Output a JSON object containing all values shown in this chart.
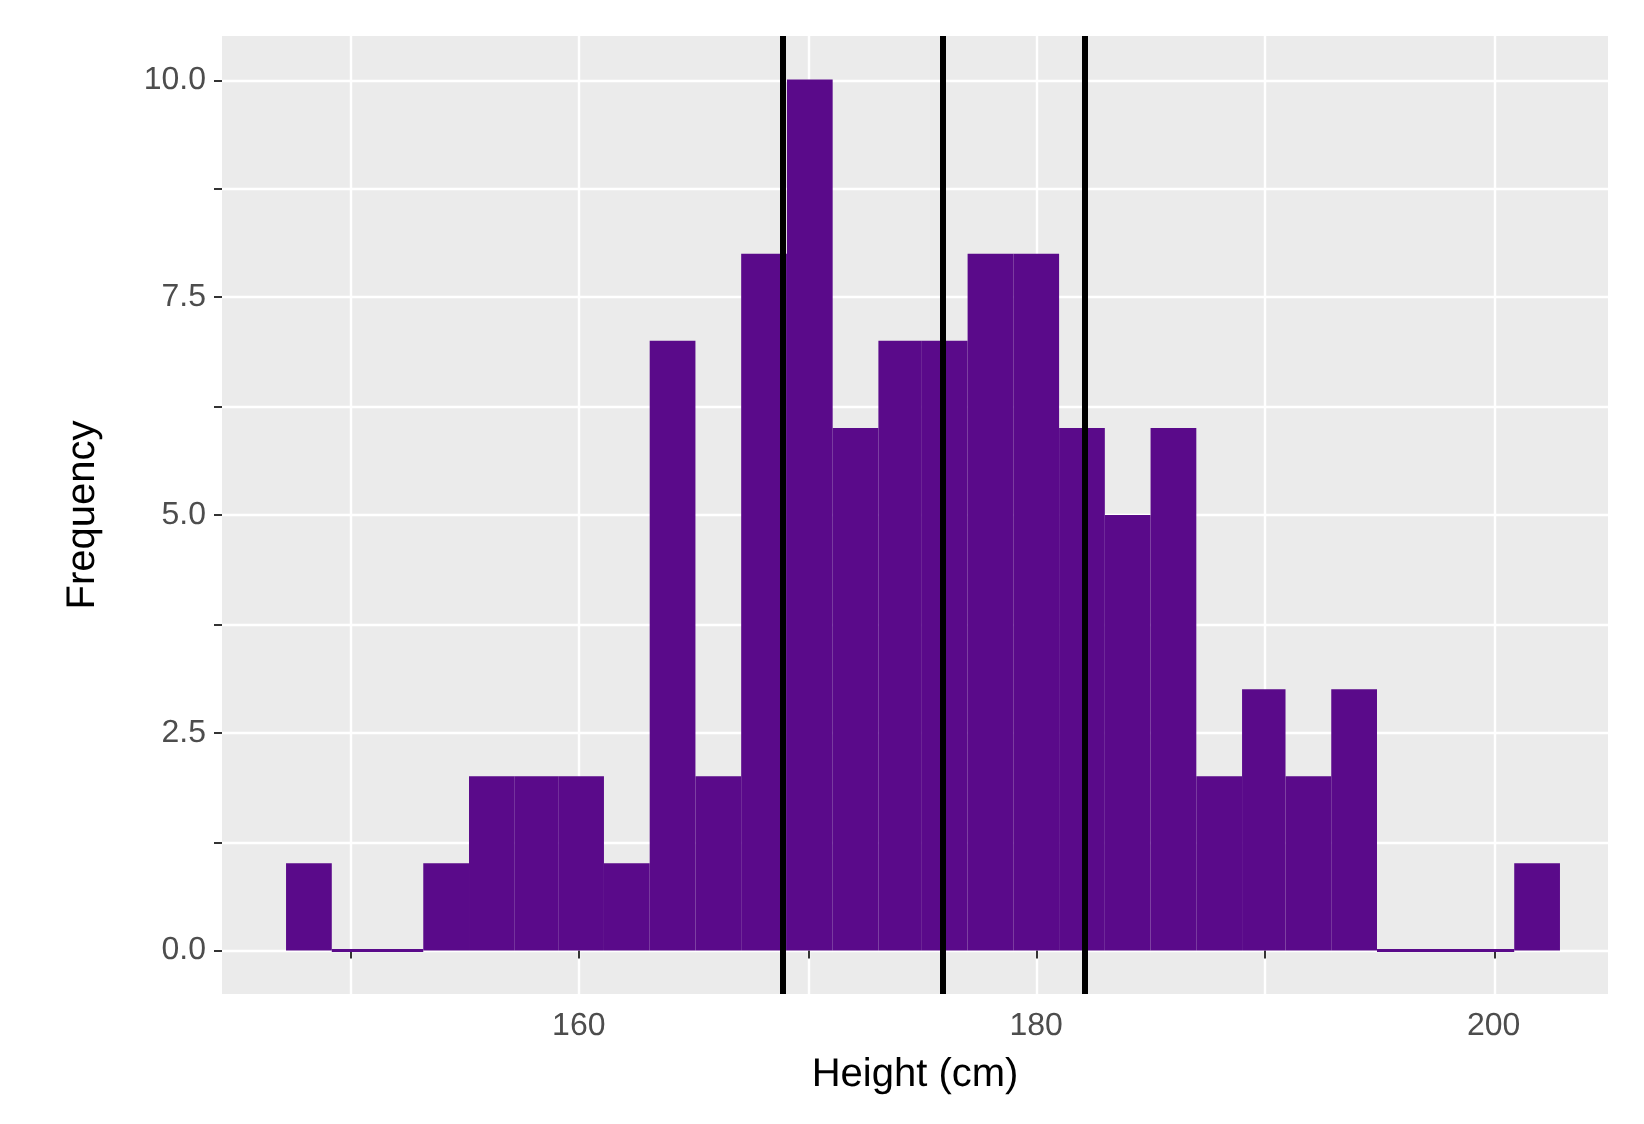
{
  "chart_data": {
    "type": "histogram",
    "xlabel": "Height (cm)",
    "ylabel": "Frequency",
    "color": "#5a0a8a",
    "bins": [
      147.2,
      149.2,
      153.2,
      155.2,
      157.2,
      159.1,
      161.1,
      163.1,
      165.1,
      167.1,
      169.1,
      171.1,
      173.1,
      175.0,
      177.0,
      179.0,
      181.0,
      183.0,
      185.0,
      187.0,
      189.0,
      190.9,
      192.9,
      194.9,
      200.9,
      202.9
    ],
    "values": [
      1,
      0,
      1,
      2,
      2,
      2,
      1,
      7,
      2,
      8,
      10,
      6,
      7,
      7,
      8,
      8,
      6,
      5,
      6,
      2,
      3,
      2,
      3,
      0,
      1
    ],
    "xlim": [
      144.4,
      205.0
    ],
    "xticks": [
      {
        "value": 150,
        "label": null
      },
      160,
      {
        "value": 170,
        "label": null
      },
      180,
      {
        "value": 190,
        "label": null
      },
      200
    ],
    "ylim": [
      -0.5,
      10.5
    ],
    "yticks": [
      {
        "value": 0,
        "label": "0.0"
      },
      {
        "value": 1.25,
        "label": null
      },
      {
        "value": 2.5,
        "label": "2.5"
      },
      {
        "value": 3.75,
        "label": null
      },
      {
        "value": 5,
        "label": "5.0"
      },
      {
        "value": 6.25,
        "label": null
      },
      {
        "value": 7.5,
        "label": "7.5"
      },
      {
        "value": 8.75,
        "label": null
      },
      {
        "value": 10,
        "label": "10.0"
      }
    ],
    "grid": true,
    "ref_lines": [
      {
        "axis": "x",
        "value": 168.9,
        "color": "#000000"
      },
      {
        "axis": "x",
        "value": 175.9,
        "color": "#000000"
      },
      {
        "axis": "x",
        "value": 182.1,
        "color": "#000000"
      }
    ]
  }
}
